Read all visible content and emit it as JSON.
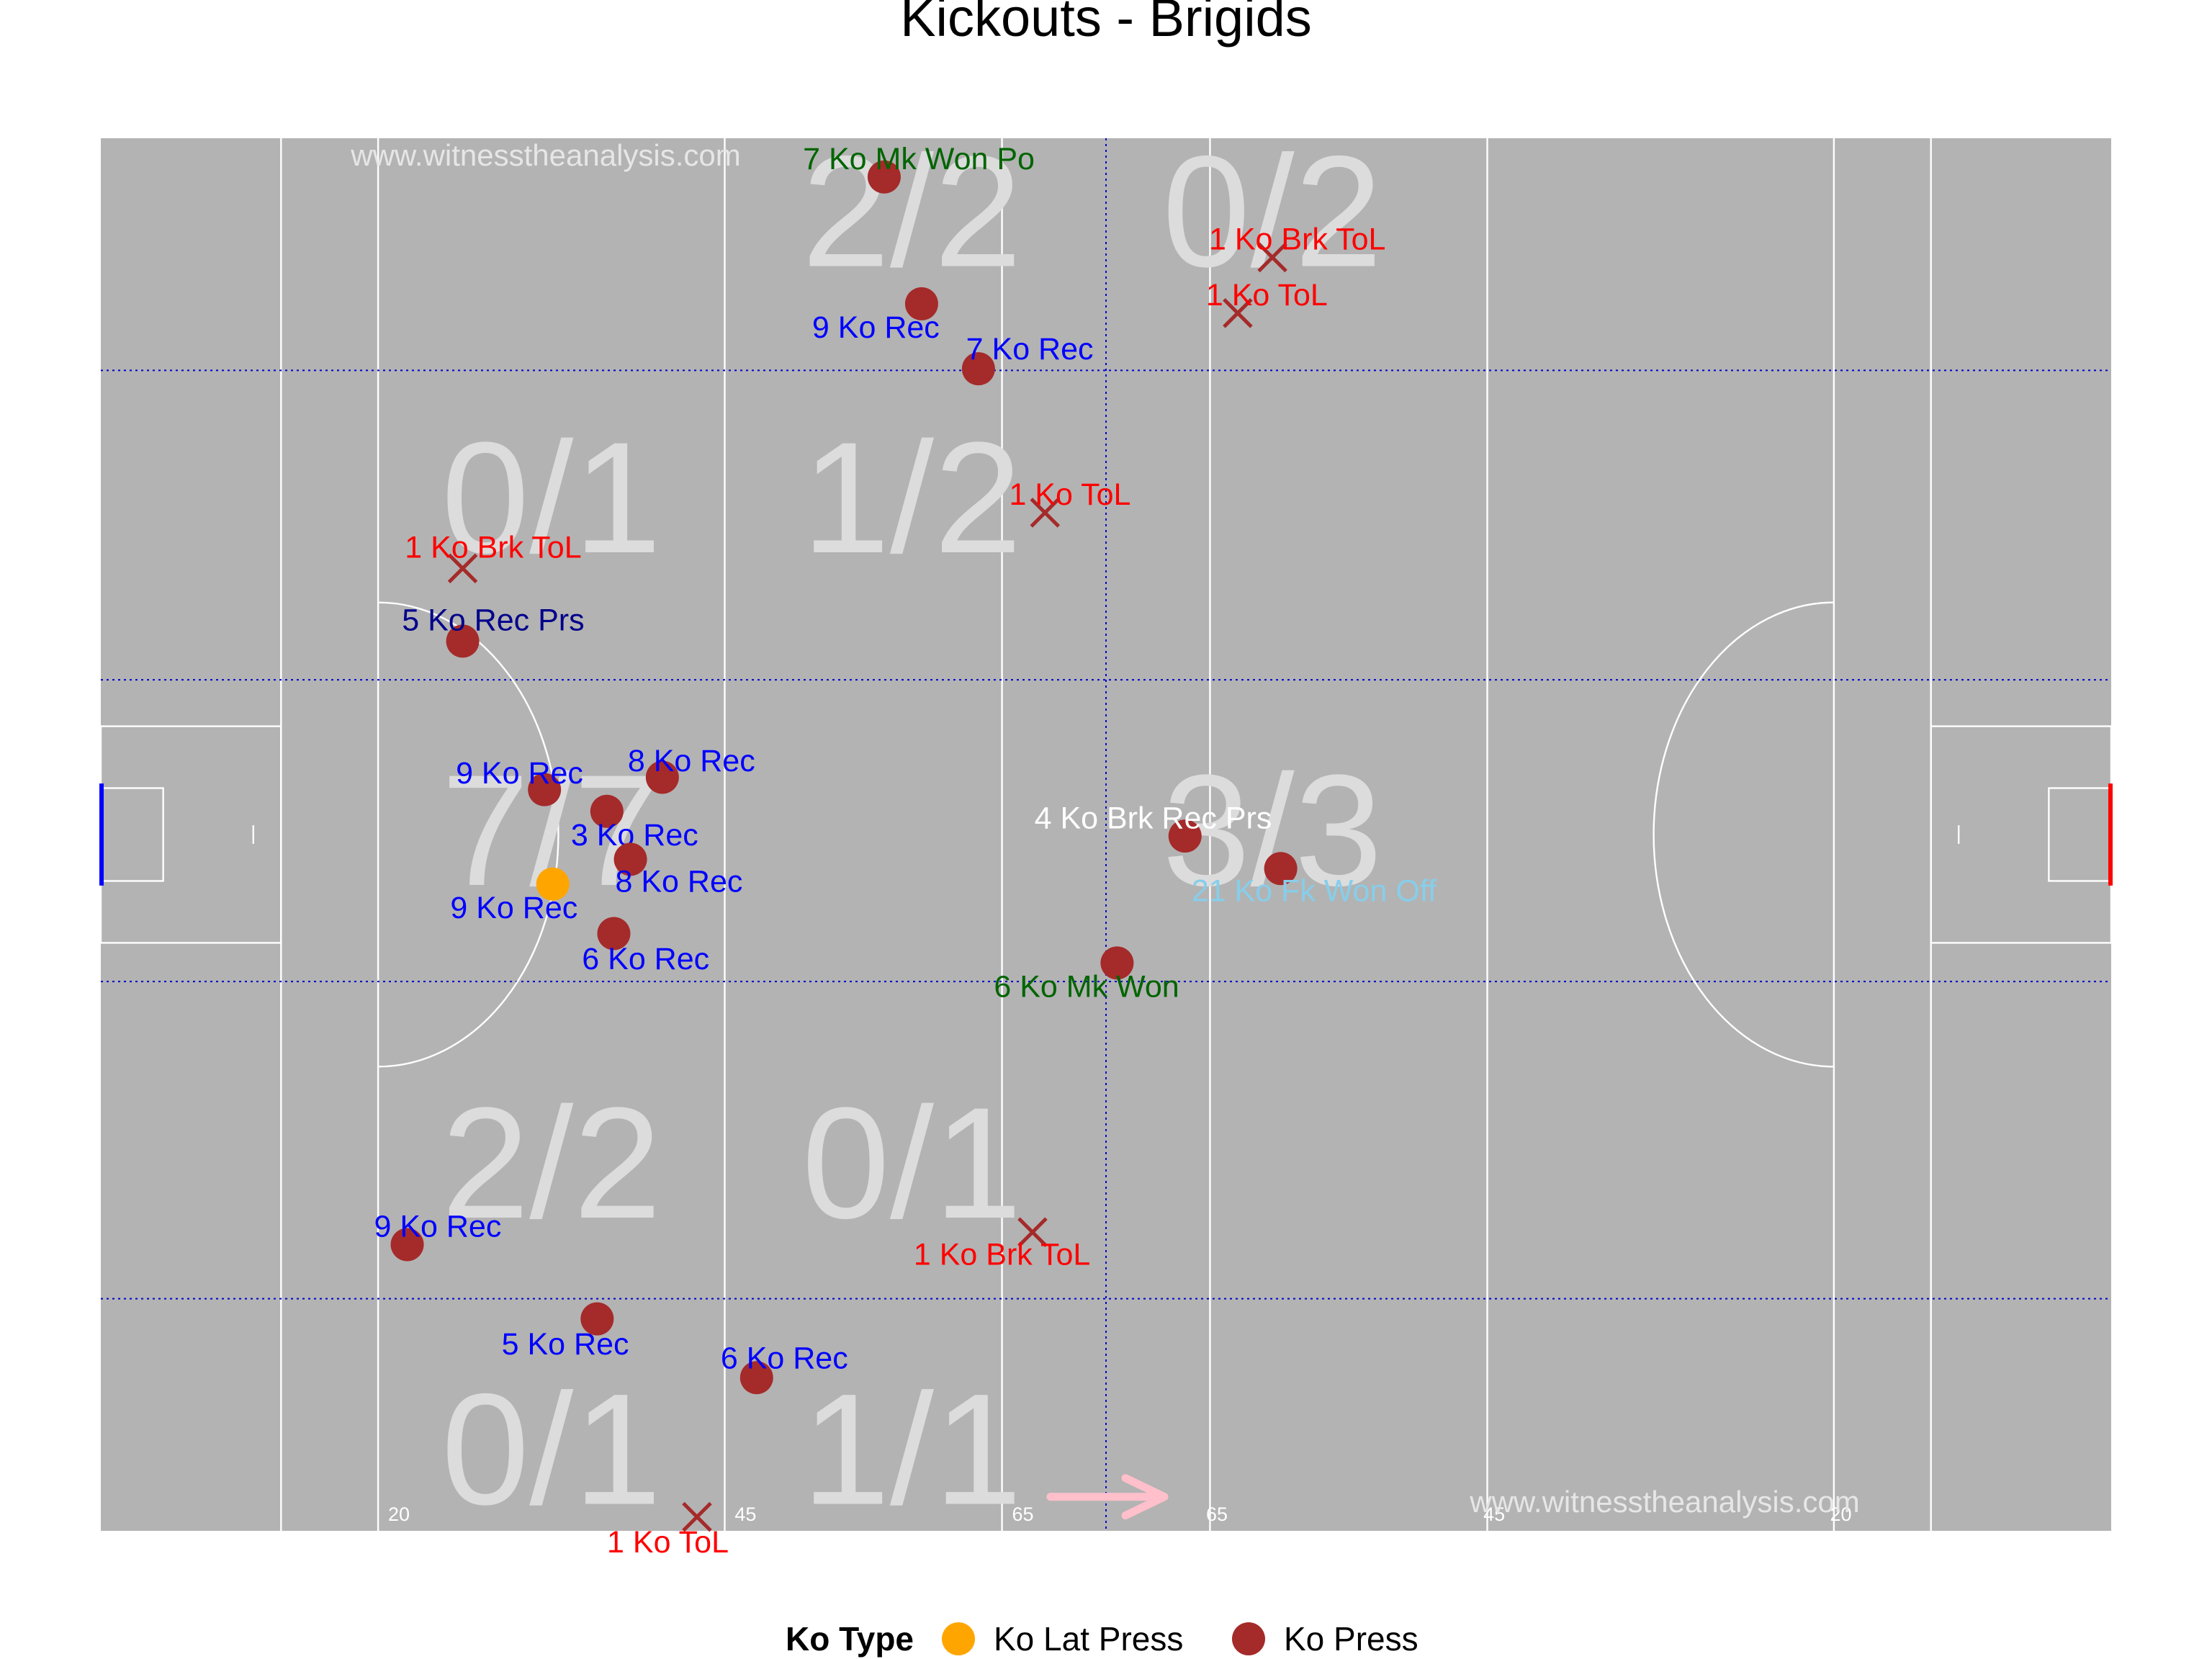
{
  "chart_data": {
    "type": "scatter",
    "title": "Kickouts - Brigids",
    "watermark": "www.witnesstheanalysis.com",
    "pitch": {
      "xlim": [
        0,
        145
      ],
      "ylim": [
        0,
        90
      ],
      "surface_color": "#b3b3b3",
      "line_color": "#ffffff",
      "grid_color": "#0000cc",
      "distance_labels": [
        {
          "x": 21.5,
          "text": "20"
        },
        {
          "x": 46.5,
          "text": "45"
        },
        {
          "x": 66.5,
          "text": "65"
        },
        {
          "x": 80.5,
          "text": "65"
        },
        {
          "x": 100.5,
          "text": "45"
        },
        {
          "x": 125.5,
          "text": "20"
        }
      ],
      "left_goal_color": "#0000ff",
      "right_goal_color": "#ff0000",
      "direction_arrow_color": "#ffc0cb"
    },
    "zone_labels": [
      {
        "x": 32.5,
        "y": 85,
        "text": ""
      },
      {
        "x": 58.5,
        "y": 85,
        "text": "2/2"
      },
      {
        "x": 84.5,
        "y": 85,
        "text": "0/2"
      },
      {
        "x": 32.5,
        "y": 66.5,
        "text": "0/1"
      },
      {
        "x": 58.5,
        "y": 66.5,
        "text": "1/2"
      },
      {
        "x": 32.5,
        "y": 45,
        "text": "7/7"
      },
      {
        "x": 84.5,
        "y": 45,
        "text": "3/3"
      },
      {
        "x": 32.5,
        "y": 23.5,
        "text": "2/2"
      },
      {
        "x": 58.5,
        "y": 23.5,
        "text": "0/1"
      },
      {
        "x": 32.5,
        "y": 5,
        "text": "0/1"
      },
      {
        "x": 58.5,
        "y": 5,
        "text": "1/1"
      }
    ],
    "legend": {
      "title": "Ko Type",
      "position": "bottom",
      "items": [
        {
          "label": "Ko Lat Press",
          "color": "#ffa500"
        },
        {
          "label": "Ko Press",
          "color": "#a52a2a"
        }
      ]
    },
    "marker_colors": {
      "Ko Press": "#a52a2a",
      "Ko Lat Press": "#ffa500"
    },
    "label_colors": {
      "rec": "#0000ff",
      "tol": "#ff0000",
      "won": "#006400",
      "rec_prs": "#00008b",
      "brk_rec_prs": "#ffffff",
      "fk_won": "#87ceeb"
    },
    "points": [
      {
        "x": 56.5,
        "y": 87.5,
        "marker": "circle",
        "ko_type": "Ko Press",
        "label": "7 Ko Mk Won Po",
        "label_color": "won",
        "label_dx": 2.5,
        "label_dy": 1.2
      },
      {
        "x": 59.2,
        "y": 79.3,
        "marker": "circle",
        "ko_type": "Ko Press",
        "label": "9 Ko Rec",
        "label_color": "rec",
        "label_dx": -3.3,
        "label_dy": -1.5
      },
      {
        "x": 63.3,
        "y": 75.1,
        "marker": "circle",
        "ko_type": "Ko Press",
        "label": "7 Ko Rec",
        "label_color": "rec",
        "label_dx": 3.7,
        "label_dy": 1.3
      },
      {
        "x": 84.5,
        "y": 82.3,
        "marker": "x",
        "ko_type": "Ko Press",
        "label": "1 Ko Brk ToL",
        "label_color": "tol",
        "label_dx": 1.8,
        "label_dy": 1.2
      },
      {
        "x": 82.0,
        "y": 78.7,
        "marker": "x",
        "ko_type": "Ko Press",
        "label": "1 Ko ToL",
        "label_color": "tol",
        "label_dx": 2.1,
        "label_dy": 1.2
      },
      {
        "x": 68.1,
        "y": 65.8,
        "marker": "x",
        "ko_type": "Ko Press",
        "label": "1 Ko ToL",
        "label_color": "tol",
        "label_dx": 1.8,
        "label_dy": 1.2
      },
      {
        "x": 26.1,
        "y": 62.2,
        "marker": "x",
        "ko_type": "Ko Press",
        "label": "1 Ko Brk ToL",
        "label_color": "tol",
        "label_dx": 2.2,
        "label_dy": 1.4
      },
      {
        "x": 26.1,
        "y": 57.5,
        "marker": "circle",
        "ko_type": "Ko Press",
        "label": "5 Ko Rec Prs",
        "label_color": "rec_prs",
        "label_dx": 2.2,
        "label_dy": 1.4
      },
      {
        "x": 40.5,
        "y": 48.7,
        "marker": "circle",
        "ko_type": "Ko Press",
        "label": "8 Ko Rec",
        "label_color": "rec",
        "label_dx": 2.1,
        "label_dy": 1.1
      },
      {
        "x": 32.0,
        "y": 47.9,
        "marker": "circle",
        "ko_type": "Ko Press",
        "label": "9 Ko Rec",
        "label_color": "rec",
        "label_dx": -1.8,
        "label_dy": 1.1
      },
      {
        "x": 36.5,
        "y": 46.5,
        "marker": "circle",
        "ko_type": "Ko Press",
        "label": "3 Ko Rec",
        "label_color": "rec",
        "label_dx": 2.0,
        "label_dy": -1.5
      },
      {
        "x": 38.2,
        "y": 43.4,
        "marker": "circle",
        "ko_type": "Ko Press",
        "label": "8 Ko Rec",
        "label_color": "rec",
        "label_dx": 3.5,
        "label_dy": -1.4
      },
      {
        "x": 32.6,
        "y": 41.8,
        "marker": "circle",
        "ko_type": "Ko Lat Press",
        "label": "9 Ko Rec",
        "label_color": "rec",
        "label_dx": -2.8,
        "label_dy": -1.5
      },
      {
        "x": 37.0,
        "y": 38.6,
        "marker": "circle",
        "ko_type": "Ko Press",
        "label": "6 Ko Rec",
        "label_color": "rec",
        "label_dx": 2.3,
        "label_dy": -1.6
      },
      {
        "x": 78.2,
        "y": 44.9,
        "marker": "circle",
        "ko_type": "Ko Press",
        "label": "4 Ko Brk Rec Prs",
        "label_color": "brk_rec_prs",
        "label_dx": -2.3,
        "label_dy": 1.2
      },
      {
        "x": 85.1,
        "y": 42.8,
        "marker": "circle",
        "ko_type": "Ko Press",
        "label": "21 Ko Fk Won Off",
        "label_color": "fk_won",
        "label_dx": 2.4,
        "label_dy": -1.4
      },
      {
        "x": 73.3,
        "y": 36.7,
        "marker": "circle",
        "ko_type": "Ko Press",
        "label": "6 Ko Mk Won",
        "label_color": "won",
        "label_dx": -2.2,
        "label_dy": -1.5
      },
      {
        "x": 67.2,
        "y": 19.3,
        "marker": "x",
        "ko_type": "Ko Press",
        "label": "1 Ko Brk ToL",
        "label_color": "tol",
        "label_dx": -2.2,
        "label_dy": -1.4
      },
      {
        "x": 22.1,
        "y": 18.5,
        "marker": "circle",
        "ko_type": "Ko Press",
        "label": "9 Ko Rec",
        "label_color": "rec",
        "label_dx": 2.2,
        "label_dy": 1.2
      },
      {
        "x": 35.8,
        "y": 13.7,
        "marker": "circle",
        "ko_type": "Ko Press",
        "label": "5 Ko Rec",
        "label_color": "rec",
        "label_dx": -2.3,
        "label_dy": -1.6
      },
      {
        "x": 47.3,
        "y": 9.9,
        "marker": "circle",
        "ko_type": "Ko Press",
        "label": "6 Ko Rec",
        "label_color": "rec",
        "label_dx": 2.0,
        "label_dy": 1.3
      },
      {
        "x": 43.0,
        "y": 0.9,
        "marker": "x",
        "ko_type": "Ko Press",
        "label": "1 Ko ToL",
        "label_color": "tol",
        "label_dx": -2.1,
        "label_dy": -1.6
      }
    ]
  }
}
